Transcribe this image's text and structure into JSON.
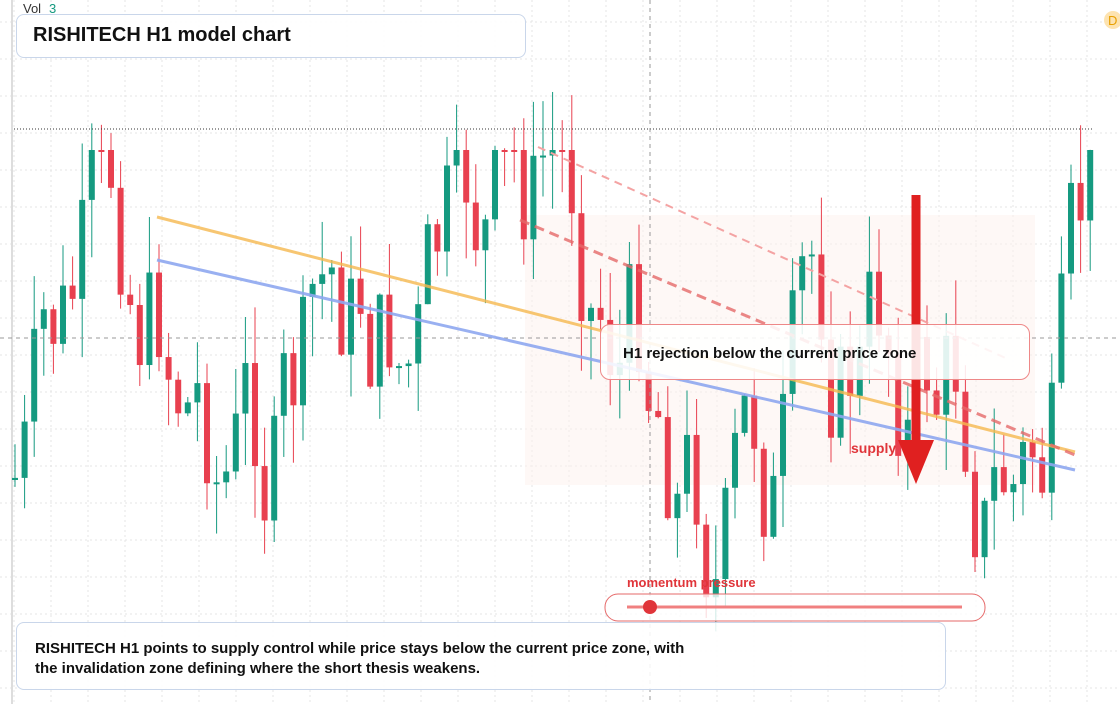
{
  "header": {
    "volume_label": "Vol",
    "volume_value": "3",
    "title": "RISHITECH H1 model chart",
    "badge": "D"
  },
  "annotations": {
    "callout": "H1 rejection below the current price zone",
    "supply": "supply",
    "momentum": "momentum pressure"
  },
  "summary": "RISHITECH H1 points to supply control while price stays below the current price zone, with the invalidation zone defining where the short thesis weakens."
}
